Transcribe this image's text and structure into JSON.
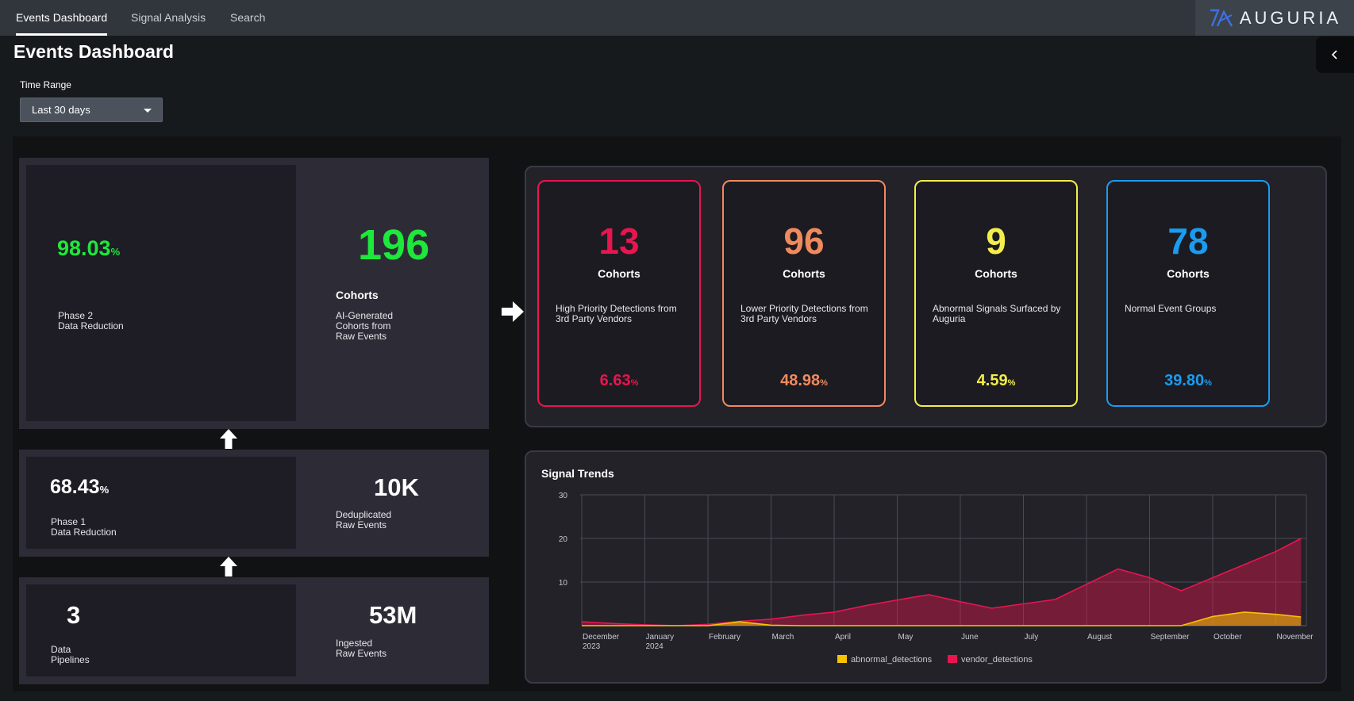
{
  "nav": {
    "tabs": [
      {
        "label": "Events Dashboard",
        "active": true
      },
      {
        "label": "Signal Analysis"
      },
      {
        "label": "Search"
      }
    ],
    "brand": "AUGURIA"
  },
  "page": {
    "title": "Events Dashboard"
  },
  "filters": {
    "time_range_label": "Time Range",
    "time_range_value": "Last 30 days"
  },
  "funnel": {
    "phase2": {
      "value": "98.03",
      "unit": "%",
      "label": "Phase 2\nData Reduction"
    },
    "cohorts": {
      "value": "196",
      "title": "Cohorts",
      "label": "AI-Generated\nCohorts from\nRaw Events"
    },
    "phase1": {
      "value": "68.43",
      "unit": "%",
      "label": "Phase 1\nData Reduction"
    },
    "dedup": {
      "value": "10K",
      "label": "Deduplicated\nRaw Events"
    },
    "pipelines": {
      "value": "3",
      "label": "Data\nPipelines"
    },
    "ingested": {
      "value": "53M",
      "label": "Ingested\nRaw Events"
    }
  },
  "cards": [
    {
      "value": "13",
      "label": "Cohorts",
      "desc": "High Priority Detections from 3rd Party Vendors",
      "pct": "6.63",
      "unit": "%",
      "color": "#e8154f"
    },
    {
      "value": "96",
      "label": "Cohorts",
      "desc": "Lower Priority Detections from 3rd Party Vendors",
      "pct": "48.98",
      "unit": "%",
      "color": "#f08a5d"
    },
    {
      "value": "9",
      "label": "Cohorts",
      "desc": "Abnormal Signals Surfaced by Auguria",
      "pct": "4.59",
      "unit": "%",
      "color": "#f3ee4a"
    },
    {
      "value": "78",
      "label": "Cohorts",
      "desc": "Normal Event Groups",
      "pct": "39.80",
      "unit": "%",
      "color": "#1a9cf0"
    }
  ],
  "chart_data": {
    "type": "area",
    "title": "Signal Trends",
    "x": [
      "December\n2023",
      "January\n2024",
      "February",
      "March",
      "April",
      "May",
      "June",
      "July",
      "August",
      "September",
      "October",
      "November"
    ],
    "ylim": [
      0,
      30
    ],
    "yticks": [
      10,
      20,
      30
    ],
    "grid": true,
    "legend_position": "bottom",
    "series": [
      {
        "name": "abnormal_detections",
        "color": "#f5c400",
        "points": [
          [
            0.0,
            0
          ],
          [
            0.5,
            0
          ],
          [
            1.0,
            0
          ],
          [
            1.5,
            0
          ],
          [
            2.0,
            0
          ],
          [
            2.5,
            0.9
          ],
          [
            3.0,
            0.1
          ],
          [
            3.5,
            0
          ],
          [
            4.0,
            0
          ],
          [
            4.5,
            0
          ],
          [
            5.0,
            0
          ],
          [
            5.5,
            0
          ],
          [
            6.0,
            0
          ],
          [
            6.5,
            0
          ],
          [
            7.0,
            0
          ],
          [
            7.5,
            0
          ],
          [
            8.0,
            0
          ],
          [
            8.5,
            0
          ],
          [
            9.0,
            0
          ],
          [
            9.5,
            0
          ],
          [
            10.0,
            2.1
          ],
          [
            10.5,
            3.1
          ],
          [
            11.0,
            2.6
          ],
          [
            11.4,
            2.0
          ]
        ]
      },
      {
        "name": "vendor_detections",
        "color": "#e8154f",
        "points": [
          [
            0.0,
            0.9
          ],
          [
            0.5,
            0.5
          ],
          [
            1.0,
            0.2
          ],
          [
            1.5,
            0
          ],
          [
            2.0,
            0.3
          ],
          [
            2.5,
            1.0
          ],
          [
            3.0,
            1.5
          ],
          [
            3.5,
            2.4
          ],
          [
            4.0,
            3.1
          ],
          [
            4.5,
            4.6
          ],
          [
            5.0,
            5.9
          ],
          [
            5.5,
            7.1
          ],
          [
            6.0,
            5.5
          ],
          [
            6.5,
            4.0
          ],
          [
            7.0,
            5.0
          ],
          [
            7.5,
            6.0
          ],
          [
            8.0,
            9.5
          ],
          [
            8.5,
            13.0
          ],
          [
            9.0,
            11.0
          ],
          [
            9.5,
            8.0
          ],
          [
            10.0,
            11.0
          ],
          [
            10.5,
            14.0
          ],
          [
            11.0,
            17.0
          ],
          [
            11.4,
            20.0
          ]
        ]
      }
    ]
  }
}
